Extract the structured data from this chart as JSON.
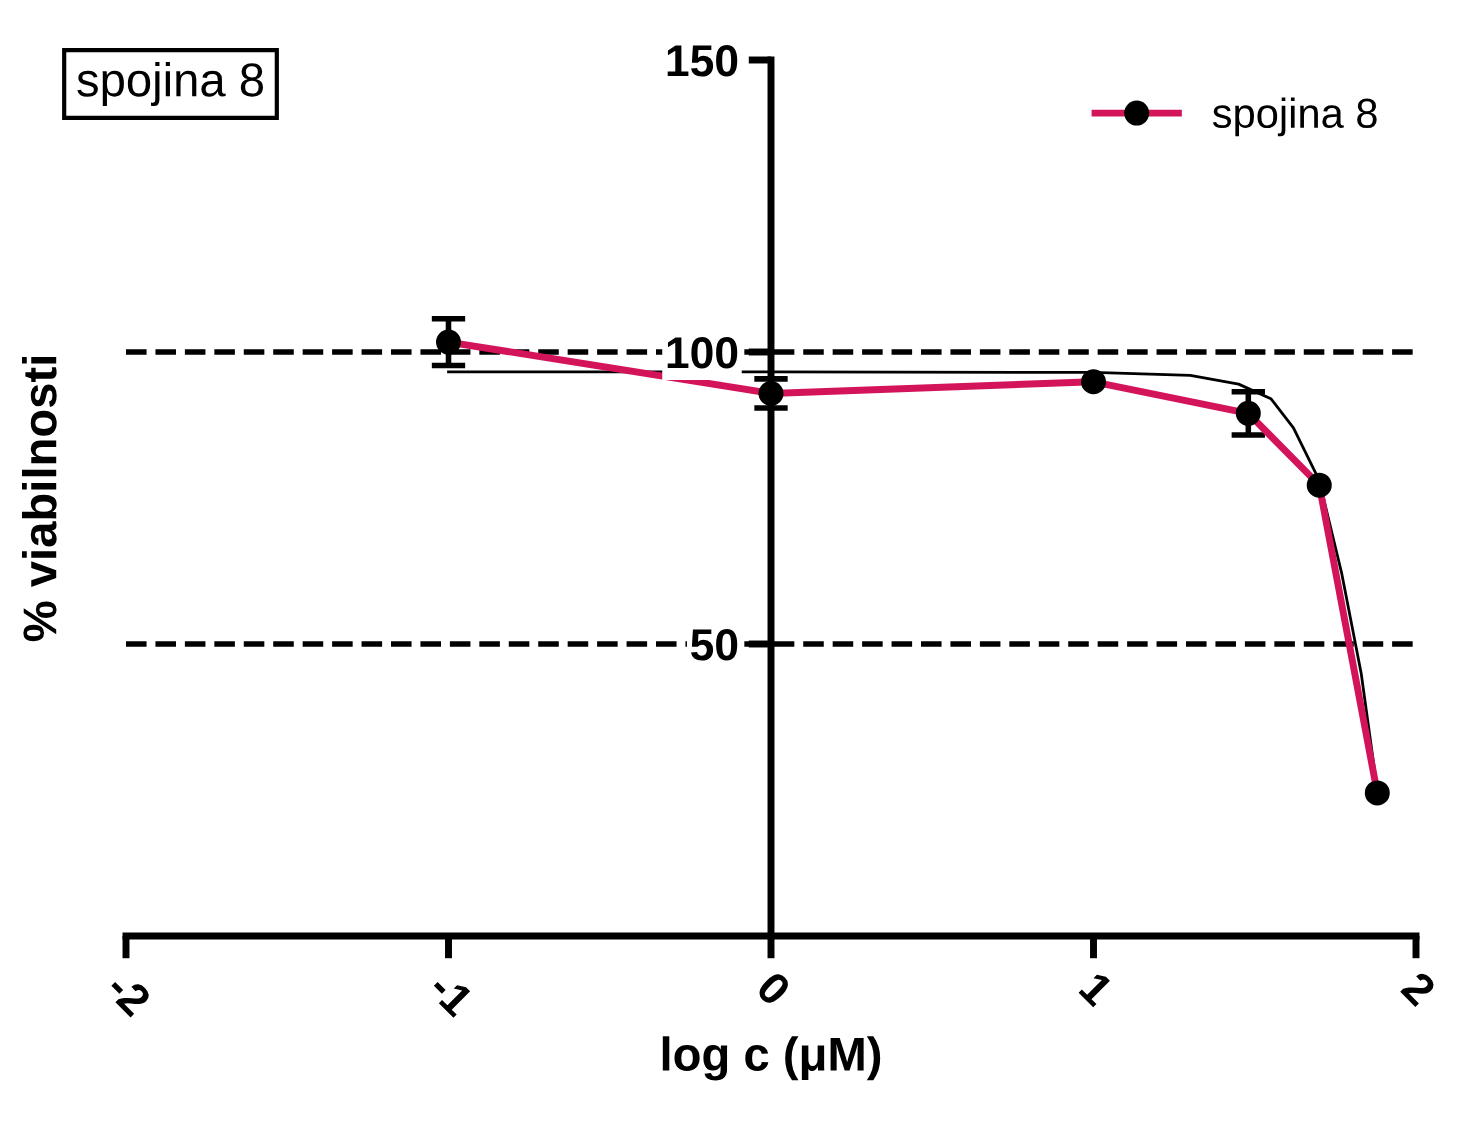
{
  "chart_data": {
    "type": "line",
    "title": "spojina 8",
    "xlabel": "log c (μM)",
    "ylabel": "% viabilnosti",
    "xlim": [
      -2,
      2
    ],
    "xticks": [
      -2,
      -1,
      0,
      1,
      2
    ],
    "ylim": [
      0,
      150
    ],
    "yticks": [
      50,
      100,
      150
    ],
    "series": [
      {
        "name": "spojina 8",
        "color": "#d4145a",
        "marker": "circle",
        "x": [
          -1,
          0,
          1,
          1.48,
          1.7,
          1.88
        ],
        "values": [
          101.7,
          92.9,
          94.9,
          89.5,
          77.2,
          24.5
        ],
        "errors": [
          4,
          2.5,
          null,
          3.7,
          null,
          null
        ]
      },
      {
        "type": "line",
        "color": "#000000",
        "marker": "none",
        "x": [
          -1,
          0,
          1,
          1.3,
          1.45,
          1.55,
          1.62,
          1.7,
          1.77,
          1.83,
          1.88
        ],
        "values": [
          96.6,
          96.6,
          96.5,
          96,
          94.5,
          92,
          87,
          78,
          62,
          45,
          25
        ]
      }
    ],
    "ref_lines": [
      {
        "axis": "y",
        "value": 100,
        "line_style": "dashed",
        "color": "#000000"
      },
      {
        "axis": "y",
        "value": 50,
        "line_style": "dashed",
        "color": "#000000"
      }
    ],
    "grid": false,
    "legend": "top right"
  }
}
